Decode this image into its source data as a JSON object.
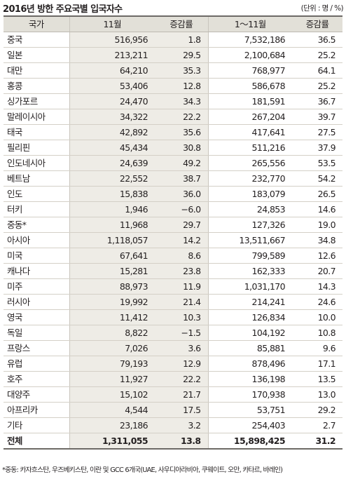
{
  "title": "2016년 방한 주요국별 입국자수",
  "unit": "(단위 : 명 / %)",
  "columns": [
    "국가",
    "11월",
    "증감률",
    "1～11월",
    "증감률"
  ],
  "rows": [
    [
      "중국",
      "516,956",
      "1.8",
      "7,532,186",
      "36.5"
    ],
    [
      "일본",
      "213,211",
      "29.5",
      "2,100,684",
      "25.2"
    ],
    [
      "대만",
      "64,210",
      "35.3",
      "768,977",
      "64.1"
    ],
    [
      "홍콩",
      "53,406",
      "12.8",
      "586,678",
      "25.2"
    ],
    [
      "싱가포르",
      "24,470",
      "34.3",
      "181,591",
      "36.7"
    ],
    [
      "말레이시아",
      "34,322",
      "22.2",
      "267,204",
      "39.7"
    ],
    [
      "태국",
      "42,892",
      "35.6",
      "417,641",
      "27.5"
    ],
    [
      "필리핀",
      "45,434",
      "30.8",
      "511,216",
      "37.9"
    ],
    [
      "인도네시아",
      "24,639",
      "49.2",
      "265,556",
      "53.5"
    ],
    [
      "베트남",
      "22,552",
      "38.7",
      "232,770",
      "54.2"
    ],
    [
      "인도",
      "15,838",
      "36.0",
      "183,079",
      "26.5"
    ],
    [
      "터키",
      "1,946",
      "−6.0",
      "24,853",
      "14.6"
    ],
    [
      "중동*",
      "11,968",
      "29.7",
      "127,326",
      "19.0"
    ],
    [
      "아시아",
      "1,118,057",
      "14.2",
      "13,511,667",
      "34.8"
    ],
    [
      "미국",
      "67,641",
      "8.6",
      "799,589",
      "12.6"
    ],
    [
      "캐나다",
      "15,281",
      "23.8",
      "162,333",
      "20.7"
    ],
    [
      "미주",
      "88,973",
      "11.9",
      "1,031,170",
      "14.3"
    ],
    [
      "러시아",
      "19,992",
      "21.4",
      "214,241",
      "24.6"
    ],
    [
      "영국",
      "11,412",
      "10.3",
      "126,834",
      "10.0"
    ],
    [
      "독일",
      "8,822",
      "−1.5",
      "104,192",
      "10.8"
    ],
    [
      "프랑스",
      "7,026",
      "3.6",
      "85,881",
      "9.6"
    ],
    [
      "유럽",
      "79,193",
      "12.9",
      "878,496",
      "17.1"
    ],
    [
      "호주",
      "11,927",
      "22.2",
      "136,198",
      "13.5"
    ],
    [
      "대양주",
      "15,102",
      "21.7",
      "170,938",
      "13.0"
    ],
    [
      "아프리카",
      "4,544",
      "17.5",
      "53,751",
      "29.2"
    ],
    [
      "기타",
      "23,186",
      "3.2",
      "254,403",
      "2.7"
    ]
  ],
  "total": [
    "전체",
    "1,311,055",
    "13.8",
    "15,898,425",
    "31.2"
  ],
  "footnote": "*중동: 카자흐스탄, 우즈베키스탄, 이란 및 GCC 6개국(UAE, 사우디아라비아, 쿠웨이트, 오만, 카타르, 바레인)",
  "colors": {
    "header_bg": "#e2e0d8",
    "shade_bg": "#eeece6",
    "rule": "#6d6a66"
  }
}
